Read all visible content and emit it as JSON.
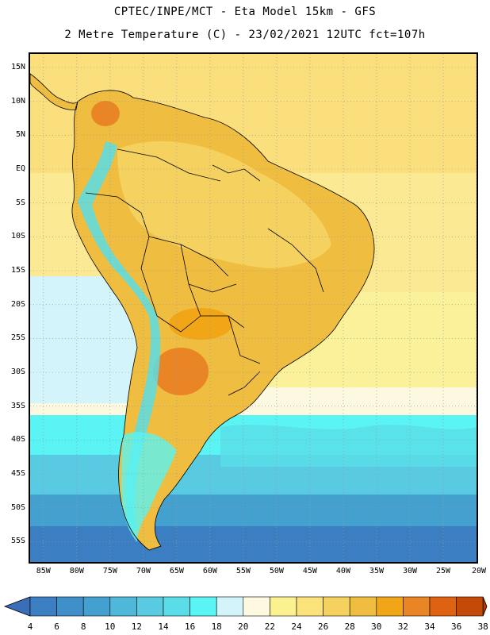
{
  "header": {
    "line1": "CPTEC/INPE/MCT -  Eta Model 15km - GFS",
    "line2": "2 Metre Temperature (C) - 23/02/2021 12UTC fct=107h"
  },
  "map": {
    "lat_labels": [
      "15N",
      "10N",
      "5N",
      "EQ",
      "5S",
      "10S",
      "15S",
      "20S",
      "25S",
      "30S",
      "35S",
      "40S",
      "45S",
      "50S",
      "55S"
    ],
    "lon_labels": [
      "85W",
      "80W",
      "75W",
      "70W",
      "65W",
      "60W",
      "55W",
      "50W",
      "45W",
      "40W",
      "35W",
      "30W",
      "25W",
      "20W"
    ],
    "extent": {
      "lon_min": -87,
      "lon_max": -20,
      "lat_min": -58,
      "lat_max": 17
    }
  },
  "colorbar": {
    "ticks": [
      "4",
      "6",
      "8",
      "10",
      "12",
      "14",
      "16",
      "18",
      "20",
      "22",
      "24",
      "26",
      "28",
      "30",
      "32",
      "34",
      "36",
      "38"
    ],
    "colors": [
      "#3c7ec2",
      "#3f8fc9",
      "#44a1cf",
      "#4fb8d9",
      "#58cbe2",
      "#5adde8",
      "#5af4f4",
      "#d4f4fb",
      "#fdf8e0",
      "#fbf18f",
      "#fce27a",
      "#f5d25f",
      "#efbd3f",
      "#f0a616",
      "#e98524",
      "#de6212",
      "#c34a07"
    ],
    "left_arrow_color": "#3a6fb8",
    "right_arrow_color": "#b23a04"
  },
  "colors": {
    "ocean_warm": "#fce58a",
    "ocean_mid": "#fbf19a",
    "ocean_cool": "#58cbe2",
    "ocean_cold": "#3c7ec2",
    "land_hot": "#efbd3f",
    "andes": "#5adde8"
  }
}
